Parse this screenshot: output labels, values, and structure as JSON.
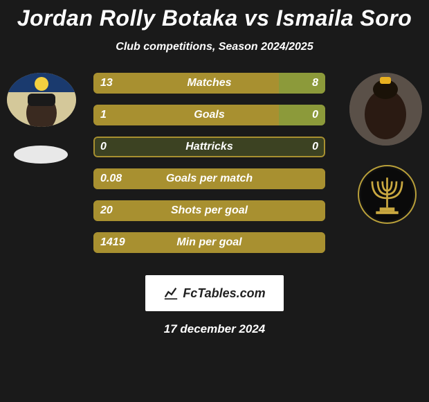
{
  "title": "Jordan Rolly Botaka vs Ismaila Soro",
  "subtitle": "Club competitions, Season 2024/2025",
  "brand": "FcTables.com",
  "date": "17 december 2024",
  "colors": {
    "bar_border": "#a89030",
    "left_fill": "#a89030",
    "right_fill": "#8c9a3a",
    "track_fill": "#3c4222",
    "background": "#1a1a1a"
  },
  "stats": [
    {
      "label": "Matches",
      "left_text": "13",
      "right_text": "8",
      "left_pct": 80,
      "right_pct": 20
    },
    {
      "label": "Goals",
      "left_text": "1",
      "right_text": "0",
      "left_pct": 80,
      "right_pct": 20
    },
    {
      "label": "Hattricks",
      "left_text": "0",
      "right_text": "0",
      "left_pct": 0,
      "right_pct": 0
    },
    {
      "label": "Goals per match",
      "left_text": "0.08",
      "right_text": "",
      "left_pct": 100,
      "right_pct": 0
    },
    {
      "label": "Shots per goal",
      "left_text": "20",
      "right_text": "",
      "left_pct": 100,
      "right_pct": 0
    },
    {
      "label": "Min per goal",
      "left_text": "1419",
      "right_text": "",
      "left_pct": 100,
      "right_pct": 0
    }
  ]
}
